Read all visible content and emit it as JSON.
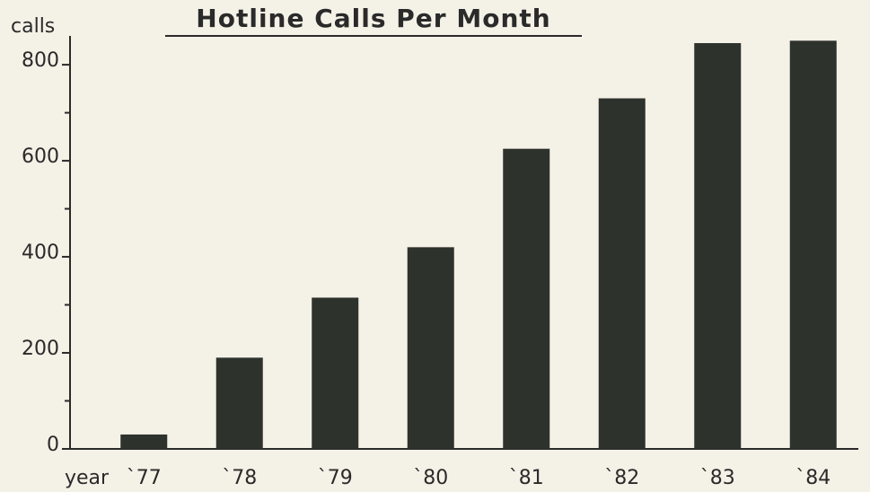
{
  "chart_data": {
    "type": "bar",
    "title": "Hotline Calls Per Month",
    "y_label": "calls",
    "x_label": "year",
    "categories": [
      "`77",
      "`78",
      "`79",
      "`80",
      "`81",
      "`82",
      "`83",
      "`84"
    ],
    "values": [
      30,
      190,
      315,
      420,
      625,
      730,
      845,
      850
    ],
    "color": "#2e322d",
    "ylim": [
      0,
      860
    ],
    "yticks": [
      0,
      200,
      400,
      600,
      800
    ],
    "minor_yticks": [
      100,
      300,
      500,
      700
    ],
    "grid": false
  }
}
